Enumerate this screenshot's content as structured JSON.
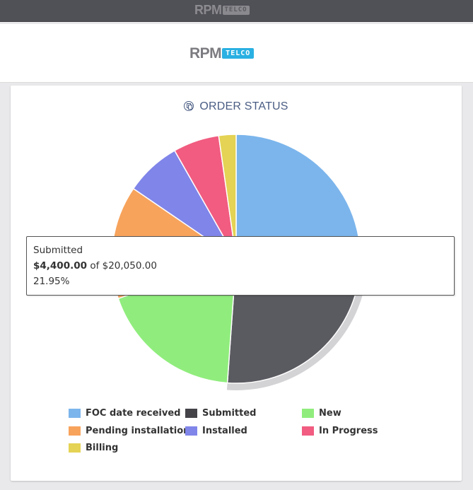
{
  "topbar": {
    "logo_main": "RPM",
    "logo_badge": "TELCO"
  },
  "header": {
    "logo_main": "RPM",
    "logo_badge": "TELCO",
    "badge_color": "#2ab0e2"
  },
  "card": {
    "title": "ORDER STATUS",
    "icon": "copy-circle-icon"
  },
  "tooltip": {
    "label": "Submitted",
    "value": "$4,400.00",
    "of_text": "of",
    "total": "$20,050.00",
    "percent": "21.95%"
  },
  "chart_data": {
    "type": "pie",
    "title": "ORDER STATUS",
    "total": 20050,
    "categories": [
      "FOC date received",
      "Submitted",
      "New",
      "Pending installation",
      "Installed",
      "In Progress",
      "Billing"
    ],
    "values": [
      5850,
      4400,
      3750,
      2950,
      1450,
      1200,
      450
    ],
    "colors": [
      "#7cb5ec",
      "#5a5a61",
      "#90ed7d",
      "#f7a35c",
      "#8085e9",
      "#f15c80",
      "#e4d354"
    ],
    "highlighted": "Submitted",
    "start_angle_deg": 0,
    "legend_position": "bottom"
  },
  "legend": [
    {
      "label": "FOC date received",
      "color": "#7cb5ec"
    },
    {
      "label": "Submitted",
      "color": "#434348"
    },
    {
      "label": "New",
      "color": "#90ed7d"
    },
    {
      "label": "Pending installation",
      "color": "#f7a35c"
    },
    {
      "label": "Installed",
      "color": "#8085e9"
    },
    {
      "label": "In Progress",
      "color": "#f15c80"
    },
    {
      "label": "Billing",
      "color": "#e4d354"
    }
  ]
}
